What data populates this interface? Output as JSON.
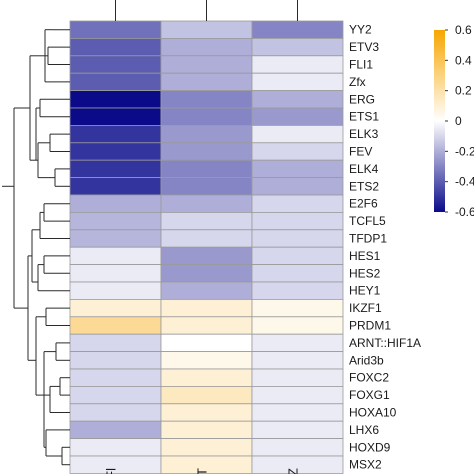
{
  "chart_data": {
    "type": "heatmap",
    "rows": [
      "YY2",
      "ETV3",
      "FLI1",
      "Zfx",
      "ERG",
      "ETS1",
      "ELK3",
      "FEV",
      "ELK4",
      "ETS2",
      "E2F6",
      "TCFL5",
      "TFDP1",
      "HES1",
      "HES2",
      "HEY1",
      "IKZF1",
      "PRDM1",
      "ARNT::HIF1A",
      "Arid3b",
      "FOXC2",
      "FOXG1",
      "HOXA10",
      "LHX6",
      "HOXD9",
      "MSX2"
    ],
    "columns": [
      "Fl",
      "T",
      "Z"
    ],
    "values": [
      [
        -0.35,
        -0.15,
        -0.3
      ],
      [
        -0.4,
        -0.2,
        -0.15
      ],
      [
        -0.4,
        -0.2,
        -0.05
      ],
      [
        -0.4,
        -0.2,
        -0.05
      ],
      [
        -0.62,
        -0.3,
        -0.2
      ],
      [
        -0.62,
        -0.3,
        -0.25
      ],
      [
        -0.5,
        -0.25,
        -0.05
      ],
      [
        -0.5,
        -0.25,
        -0.1
      ],
      [
        -0.5,
        -0.3,
        -0.2
      ],
      [
        -0.5,
        -0.3,
        -0.2
      ],
      [
        -0.2,
        -0.2,
        -0.1
      ],
      [
        -0.18,
        -0.1,
        -0.1
      ],
      [
        -0.18,
        -0.1,
        -0.1
      ],
      [
        -0.05,
        -0.25,
        -0.1
      ],
      [
        -0.05,
        -0.25,
        -0.1
      ],
      [
        -0.05,
        -0.2,
        -0.1
      ],
      [
        0.1,
        0.1,
        0.05
      ],
      [
        0.25,
        0.1,
        0.05
      ],
      [
        -0.1,
        0.0,
        -0.05
      ],
      [
        -0.1,
        0.05,
        -0.05
      ],
      [
        -0.1,
        0.1,
        -0.05
      ],
      [
        -0.1,
        0.15,
        -0.05
      ],
      [
        -0.1,
        0.1,
        -0.05
      ],
      [
        -0.2,
        0.1,
        -0.05
      ],
      [
        -0.05,
        0.1,
        -0.05
      ],
      [
        -0.05,
        0.1,
        -0.05
      ]
    ],
    "colorbar": {
      "min": -0.6,
      "max": 0.6,
      "ticks": [
        0.6,
        0.4,
        0.2,
        0.0,
        -0.2,
        -0.4,
        -0.6
      ],
      "tick_labels": [
        "0.6",
        "0.4",
        "0.2",
        "0",
        "-0.2",
        "-0.4",
        "-0.6"
      ],
      "low_color": "#0b0b8a",
      "mid_color": "#ffffff",
      "high_color": "#f7a600"
    },
    "row_dendrogram": true,
    "column_dendrogram": true,
    "grid": false,
    "legend_placement": "right"
  }
}
